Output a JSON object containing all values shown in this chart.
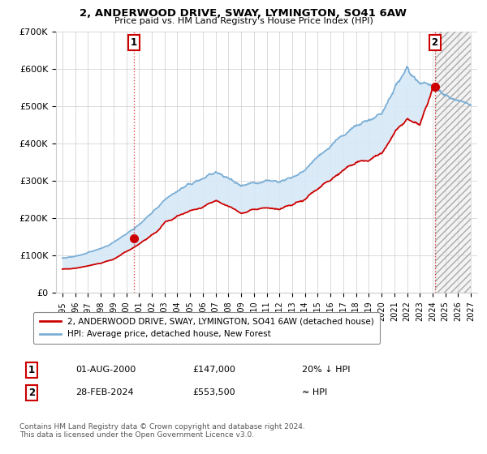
{
  "title": "2, ANDERWOOD DRIVE, SWAY, LYMINGTON, SO41 6AW",
  "subtitle": "Price paid vs. HM Land Registry's House Price Index (HPI)",
  "legend_line1": "2, ANDERWOOD DRIVE, SWAY, LYMINGTON, SO41 6AW (detached house)",
  "legend_line2": "HPI: Average price, detached house, New Forest",
  "annotation1_label": "1",
  "annotation1_date": "01-AUG-2000",
  "annotation1_price": "£147,000",
  "annotation1_hpi": "20% ↓ HPI",
  "annotation2_label": "2",
  "annotation2_date": "28-FEB-2024",
  "annotation2_price": "£553,500",
  "annotation2_hpi": "≈ HPI",
  "footer": "Contains HM Land Registry data © Crown copyright and database right 2024.\nThis data is licensed under the Open Government Licence v3.0.",
  "red_color": "#cc0000",
  "blue_color": "#7aaed6",
  "fill_color": "#d6e8f7",
  "point1_x": 2000.583,
  "point1_y": 147000,
  "point2_x": 2024.167,
  "point2_y": 553500,
  "ylim": [
    0,
    700000
  ],
  "xlim_start": 1994.5,
  "xlim_end": 2027.5,
  "future_start": 2024.167,
  "ylabel_ticks": [
    0,
    100000,
    200000,
    300000,
    400000,
    500000,
    600000,
    700000
  ],
  "ylabel_labels": [
    "£0",
    "£100K",
    "£200K",
    "£300K",
    "£400K",
    "£500K",
    "£600K",
    "£700K"
  ],
  "xtick_years": [
    1995,
    1996,
    1997,
    1998,
    1999,
    2000,
    2001,
    2002,
    2003,
    2004,
    2005,
    2006,
    2007,
    2008,
    2009,
    2010,
    2011,
    2012,
    2013,
    2014,
    2015,
    2016,
    2017,
    2018,
    2019,
    2020,
    2021,
    2022,
    2023,
    2024,
    2025,
    2026,
    2027
  ],
  "hpi_years": [
    1995,
    1996,
    1997,
    1998,
    1999,
    2000,
    2001,
    2002,
    2003,
    2004,
    2005,
    2006,
    2007,
    2008,
    2009,
    2010,
    2011,
    2012,
    2013,
    2014,
    2015,
    2016,
    2017,
    2018,
    2019,
    2020,
    2021,
    2022,
    2023,
    2024,
    2025,
    2026,
    2027
  ],
  "hpi_values": [
    93000,
    98000,
    108000,
    118000,
    135000,
    158000,
    182000,
    215000,
    248000,
    272000,
    290000,
    305000,
    325000,
    308000,
    288000,
    295000,
    300000,
    298000,
    308000,
    330000,
    365000,
    393000,
    425000,
    448000,
    460000,
    478000,
    548000,
    598000,
    565000,
    555000,
    530000,
    515000,
    505000
  ],
  "red_years": [
    1995,
    1996,
    1997,
    1998,
    1999,
    2000,
    2001,
    2002,
    2003,
    2004,
    2005,
    2006,
    2007,
    2008,
    2009,
    2010,
    2011,
    2012,
    2013,
    2014,
    2015,
    2016,
    2017,
    2018,
    2019,
    2020,
    2021,
    2022,
    2023,
    2024
  ],
  "red_values": [
    63000,
    66000,
    72000,
    79000,
    90000,
    110000,
    130000,
    155000,
    185000,
    205000,
    220000,
    230000,
    248000,
    233000,
    215000,
    222000,
    228000,
    226000,
    234000,
    252000,
    280000,
    302000,
    328000,
    348000,
    358000,
    372000,
    428000,
    468000,
    448000,
    553500
  ]
}
